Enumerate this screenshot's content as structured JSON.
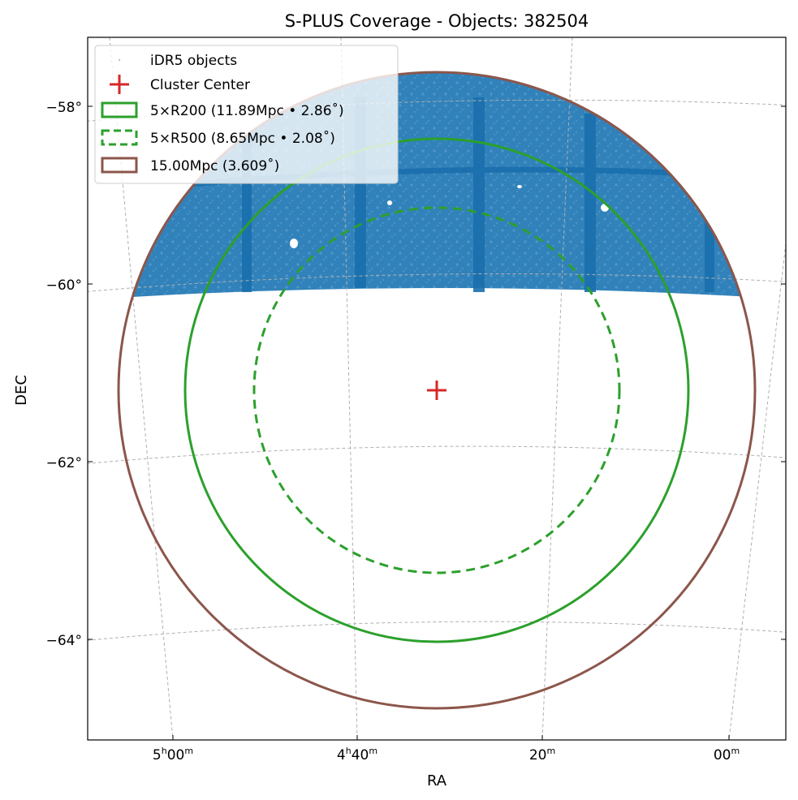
{
  "chart_data": {
    "type": "scatter",
    "title": "S-PLUS Coverage - Objects: 382504",
    "xlabel": "RA",
    "ylabel": "DEC",
    "projection": "sky (gnomonic-like), RA decreasing to the right",
    "x_ticks": [
      {
        "value": "5h00m",
        "label_main": "5",
        "sup1": "h",
        "label_mid": "00",
        "sup2": "m"
      },
      {
        "value": "4h40m",
        "label_main": "4",
        "sup1": "h",
        "label_mid": "40",
        "sup2": "m"
      },
      {
        "value": "4h20m",
        "label_main": "",
        "sup1": "",
        "label_mid": "20",
        "sup2": "m"
      },
      {
        "value": "4h00m",
        "label_main": "",
        "sup1": "",
        "label_mid": "00",
        "sup2": "m"
      }
    ],
    "y_ticks": [
      {
        "value": -58,
        "label": "−58°"
      },
      {
        "value": -60,
        "label": "−60°"
      },
      {
        "value": -62,
        "label": "−62°"
      },
      {
        "value": -64,
        "label": "−64°"
      }
    ],
    "grid": true,
    "legend_position": "top-left",
    "series": [
      {
        "name": "iDR5 objects",
        "kind": "points",
        "color": "#1f77b4",
        "count": 382504,
        "coverage": "dense band north of DEC ≈ -60.1°, clipped by the 15 Mpc circle"
      },
      {
        "name": "Cluster Center",
        "kind": "marker",
        "marker": "+",
        "color": "#d62728",
        "ra": "4h31m",
        "dec": -61.2
      },
      {
        "name": "5×R200 (11.89Mpc • 2.86˚)",
        "kind": "circle",
        "style": "solid",
        "color": "#2ca02c",
        "radius_deg": 2.86
      },
      {
        "name": "5×R500 (8.65Mpc • 2.08˚)",
        "kind": "circle",
        "style": "dashed",
        "color": "#2ca02c",
        "radius_deg": 2.08
      },
      {
        "name": "15.00Mpc (3.609˚)",
        "kind": "circle",
        "style": "solid",
        "color": "#8c564b",
        "radius_deg": 3.609
      }
    ]
  },
  "colors": {
    "points": "#1f77b4",
    "center": "#d62728",
    "green": "#2ca02c",
    "brown": "#8c564b",
    "grid": "#b0b0b0"
  }
}
